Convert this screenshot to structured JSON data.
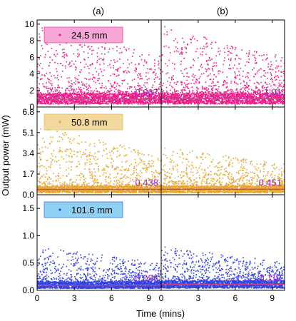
{
  "figure": {
    "ylabel": "Output power (mW)",
    "xlabel": "Time (mins)",
    "column_labels": [
      "(a)",
      "(b)"
    ]
  },
  "colors": {
    "pink": "#ec1c8c",
    "orange": "#e6a630",
    "blue": "#3344e0",
    "purple_text": "#9b2fc9",
    "pink_legend_bg": "#f7a7d6",
    "orange_legend_bg": "#f2d9a0",
    "blue_legend_bg": "#8fd0f5"
  },
  "chart_data": [
    {
      "type": "scatter",
      "row": 0,
      "column": "(a)",
      "series": [
        {
          "name": "24.5 mm",
          "color": "pink"
        }
      ],
      "legend": "top-left",
      "xlim": [
        0,
        10
      ],
      "xticks": [
        0,
        3,
        6,
        9
      ],
      "ylim": [
        0,
        10.5
      ],
      "yticks": [
        0,
        2,
        4,
        6,
        8,
        10
      ],
      "annotation": "0.967",
      "mean_line": 0.967,
      "cluster_max": 1.6,
      "sparse_max": 9.8,
      "n_points": 2400
    },
    {
      "type": "scatter",
      "row": 0,
      "column": "(b)",
      "series": [
        {
          "name": "24.5 mm",
          "color": "pink"
        }
      ],
      "xlim": [
        0,
        10
      ],
      "xticks": [
        0,
        3,
        6,
        9
      ],
      "ylim": [
        0,
        10.5
      ],
      "annotation": "1.01",
      "mean_line": 1.01,
      "cluster_max": 1.6,
      "sparse_max": 9.8,
      "n_points": 2400
    },
    {
      "type": "scatter",
      "row": 1,
      "column": "(a)",
      "series": [
        {
          "name": "50.8 mm",
          "color": "orange"
        }
      ],
      "legend": "top-left",
      "xlim": [
        0,
        10
      ],
      "xticks": [
        0,
        3,
        6,
        9
      ],
      "ylim": [
        0,
        7.2
      ],
      "yticks": [
        "0.0",
        "1.7",
        "3.4",
        "5.1",
        "6.8"
      ],
      "annotation": "0.438",
      "mean_line": 0.438,
      "cluster_max": 0.7,
      "sparse_max": 5.6,
      "n_points": 2400
    },
    {
      "type": "scatter",
      "row": 1,
      "column": "(b)",
      "series": [
        {
          "name": "50.8 mm",
          "color": "orange"
        }
      ],
      "xlim": [
        0,
        10
      ],
      "xticks": [
        0,
        3,
        6,
        9
      ],
      "ylim": [
        0,
        7.2
      ],
      "annotation": "0.451",
      "mean_line": 0.451,
      "cluster_max": 0.7,
      "sparse_max": 4.0,
      "n_points": 2400
    },
    {
      "type": "scatter",
      "row": 2,
      "column": "(a)",
      "series": [
        {
          "name": "101.6 mm",
          "color": "blue"
        }
      ],
      "legend": "top-left",
      "xlim": [
        0,
        10
      ],
      "xticks": [
        0,
        3,
        6,
        9
      ],
      "ylim": [
        0,
        1.75
      ],
      "yticks": [
        "0.0",
        "0.5",
        "1.0",
        "1.5"
      ],
      "annotation": "0.096",
      "mean_line": 0.096,
      "cluster_max": 0.15,
      "sparse_max": 0.8,
      "n_points": 2400
    },
    {
      "type": "scatter",
      "row": 2,
      "column": "(b)",
      "series": [
        {
          "name": "101.6 mm",
          "color": "blue"
        }
      ],
      "xlim": [
        0,
        10
      ],
      "xticks": [
        0,
        3,
        6,
        9
      ],
      "ylim": [
        0,
        1.75
      ],
      "annotation": "0.112",
      "mean_line": 0.112,
      "cluster_max": 0.17,
      "sparse_max": 0.8,
      "n_points": 2400
    }
  ]
}
